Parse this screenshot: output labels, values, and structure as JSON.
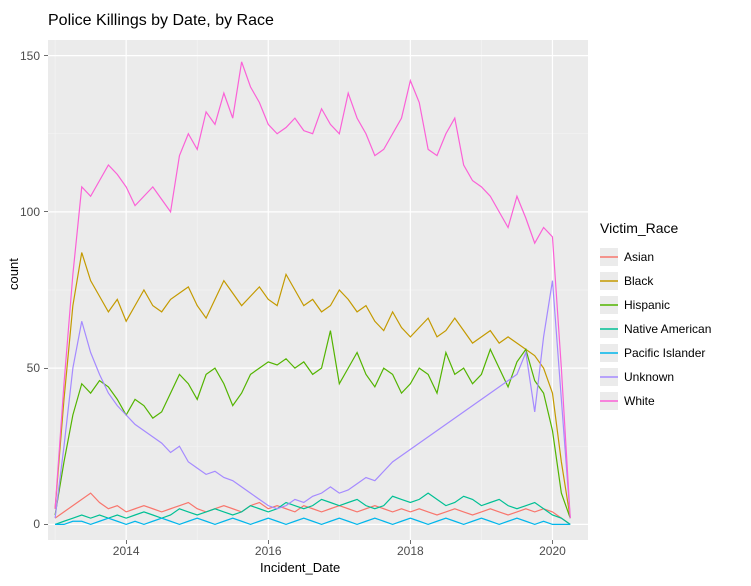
{
  "chart": {
    "type": "line",
    "title": "Police Killings by Date, by Race",
    "title_fontsize": 16,
    "background_color": "#ffffff",
    "panel_background": "#ebebeb",
    "grid_major_color": "#ffffff",
    "grid_minor_color": "#f5f5f5",
    "text_color": "#000000",
    "axis_text_color": "#4d4d4d",
    "line_width": 1.2,
    "x": {
      "label": "Incident_Date",
      "ticks": [
        2014,
        2016,
        2018,
        2020
      ],
      "lim": [
        2012.9,
        2020.5
      ]
    },
    "y": {
      "label": "count",
      "ticks": [
        0,
        50,
        100,
        150
      ],
      "lim": [
        -5,
        155
      ]
    },
    "legend": {
      "title": "Victim_Race",
      "position": "right"
    },
    "x_values": [
      2013.0,
      2013.125,
      2013.25,
      2013.375,
      2013.5,
      2013.625,
      2013.75,
      2013.875,
      2014.0,
      2014.125,
      2014.25,
      2014.375,
      2014.5,
      2014.625,
      2014.75,
      2014.875,
      2015.0,
      2015.125,
      2015.25,
      2015.375,
      2015.5,
      2015.625,
      2015.75,
      2015.875,
      2016.0,
      2016.125,
      2016.25,
      2016.375,
      2016.5,
      2016.625,
      2016.75,
      2016.875,
      2017.0,
      2017.125,
      2017.25,
      2017.375,
      2017.5,
      2017.625,
      2017.75,
      2017.875,
      2018.0,
      2018.125,
      2018.25,
      2018.375,
      2018.5,
      2018.625,
      2018.75,
      2018.875,
      2019.0,
      2019.125,
      2019.25,
      2019.375,
      2019.5,
      2019.625,
      2019.75,
      2019.875,
      2020.0,
      2020.125,
      2020.25
    ],
    "series": [
      {
        "name": "Asian",
        "color": "#f8766d",
        "values": [
          2,
          4,
          6,
          8,
          10,
          7,
          5,
          6,
          4,
          5,
          6,
          5,
          4,
          5,
          6,
          7,
          5,
          4,
          5,
          6,
          5,
          4,
          6,
          7,
          5,
          6,
          5,
          4,
          6,
          5,
          4,
          5,
          6,
          5,
          4,
          5,
          6,
          5,
          4,
          5,
          4,
          5,
          4,
          3,
          4,
          5,
          4,
          3,
          4,
          5,
          4,
          3,
          4,
          5,
          4,
          5,
          4,
          2,
          0
        ]
      },
      {
        "name": "Black",
        "color": "#c49a00",
        "values": [
          5,
          40,
          70,
          87,
          78,
          73,
          68,
          72,
          65,
          70,
          75,
          70,
          68,
          72,
          74,
          76,
          70,
          66,
          72,
          78,
          74,
          70,
          73,
          76,
          72,
          70,
          80,
          75,
          70,
          72,
          68,
          70,
          75,
          72,
          68,
          70,
          65,
          62,
          68,
          63,
          60,
          63,
          66,
          60,
          62,
          66,
          62,
          58,
          60,
          62,
          58,
          60,
          58,
          56,
          54,
          50,
          42,
          20,
          2
        ]
      },
      {
        "name": "Hispanic",
        "color": "#53b400",
        "values": [
          3,
          20,
          35,
          45,
          42,
          46,
          44,
          40,
          35,
          40,
          38,
          34,
          36,
          42,
          48,
          45,
          40,
          48,
          50,
          45,
          38,
          42,
          48,
          50,
          52,
          51,
          53,
          50,
          52,
          48,
          50,
          62,
          45,
          50,
          55,
          48,
          44,
          50,
          48,
          42,
          45,
          50,
          48,
          42,
          55,
          48,
          50,
          45,
          48,
          56,
          50,
          44,
          52,
          56,
          46,
          42,
          30,
          10,
          2
        ]
      },
      {
        "name": "Native American",
        "color": "#00c094",
        "values": [
          0,
          1,
          2,
          3,
          2,
          3,
          2,
          3,
          2,
          3,
          4,
          3,
          2,
          3,
          5,
          4,
          3,
          4,
          5,
          4,
          3,
          4,
          6,
          5,
          4,
          5,
          7,
          6,
          5,
          6,
          8,
          7,
          6,
          7,
          8,
          6,
          5,
          6,
          9,
          8,
          7,
          8,
          10,
          8,
          6,
          7,
          9,
          8,
          6,
          7,
          8,
          6,
          5,
          6,
          7,
          5,
          3,
          2,
          0
        ]
      },
      {
        "name": "Pacific Islander",
        "color": "#00b6eb",
        "values": [
          0,
          0,
          1,
          1,
          0,
          1,
          2,
          1,
          0,
          1,
          0,
          1,
          2,
          1,
          0,
          1,
          2,
          1,
          0,
          1,
          2,
          1,
          0,
          1,
          2,
          1,
          0,
          1,
          2,
          1,
          0,
          1,
          2,
          1,
          0,
          1,
          2,
          1,
          0,
          1,
          2,
          1,
          0,
          1,
          2,
          1,
          0,
          1,
          2,
          1,
          0,
          1,
          2,
          1,
          0,
          1,
          0,
          0,
          0
        ]
      },
      {
        "name": "Unknown",
        "color": "#a58aff",
        "values": [
          2,
          25,
          50,
          65,
          55,
          48,
          42,
          38,
          35,
          32,
          30,
          28,
          26,
          23,
          25,
          20,
          18,
          16,
          17,
          15,
          14,
          12,
          10,
          8,
          6,
          5,
          6,
          8,
          7,
          9,
          10,
          12,
          10,
          11,
          13,
          15,
          14,
          17,
          20,
          22,
          24,
          26,
          28,
          30,
          32,
          34,
          36,
          38,
          40,
          42,
          44,
          46,
          48,
          55,
          36,
          60,
          78,
          40,
          2
        ]
      },
      {
        "name": "White",
        "color": "#fb61d7",
        "values": [
          5,
          45,
          80,
          108,
          105,
          110,
          115,
          112,
          108,
          102,
          105,
          108,
          104,
          100,
          118,
          125,
          120,
          132,
          128,
          138,
          130,
          148,
          140,
          135,
          128,
          125,
          127,
          130,
          126,
          125,
          133,
          128,
          125,
          138,
          130,
          125,
          118,
          120,
          125,
          130,
          142,
          135,
          120,
          118,
          125,
          130,
          115,
          110,
          108,
          105,
          100,
          95,
          105,
          98,
          90,
          95,
          92,
          50,
          2
        ]
      }
    ]
  }
}
